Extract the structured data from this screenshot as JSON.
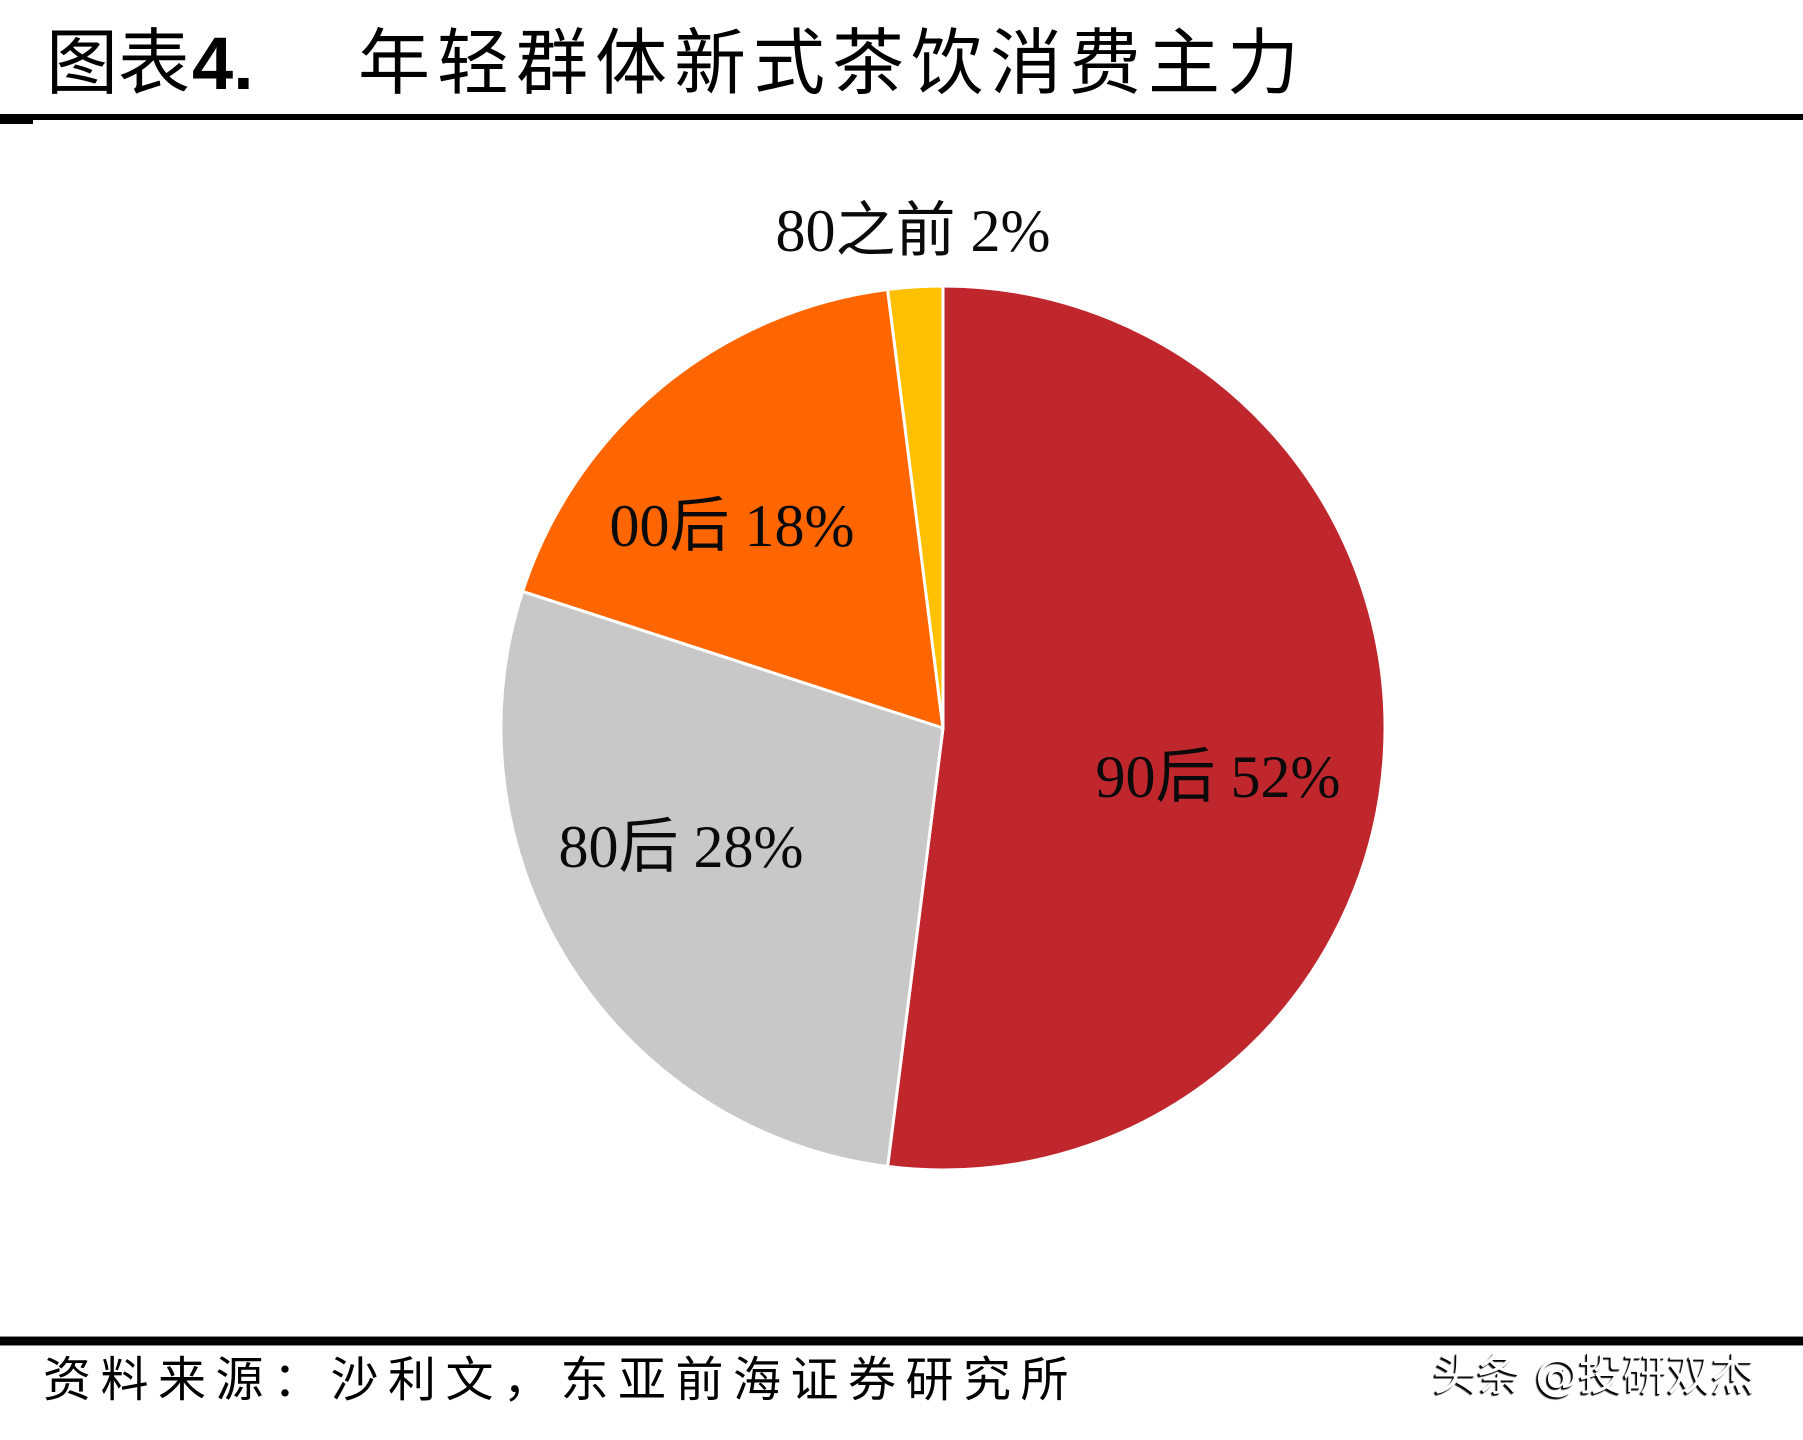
{
  "figure": {
    "label_prefix": "图表",
    "number": "4.",
    "title": "年轻群体新式茶饮消费主力"
  },
  "chart_data": {
    "type": "pie",
    "title": "年轻群体新式茶饮消费主力",
    "categories": [
      "90后",
      "80后",
      "00后",
      "80之前"
    ],
    "values": [
      52,
      28,
      18,
      2
    ],
    "unit": "%",
    "colors": [
      "#C0272D",
      "#C8C8C8",
      "#FF6600",
      "#FFC000"
    ],
    "data_labels": [
      "90后 52%",
      "80后 28%",
      "00后 18%",
      "80之前 2%"
    ],
    "start_angle_deg": 0,
    "direction": "clockwise",
    "legend_position": "none",
    "label_position": "inside slices; smallest slice labeled outside above"
  },
  "source": {
    "text": "资料来源：沙利文，东亚前海证券研究所"
  },
  "watermark": {
    "text": "头条 @投研双杰"
  }
}
